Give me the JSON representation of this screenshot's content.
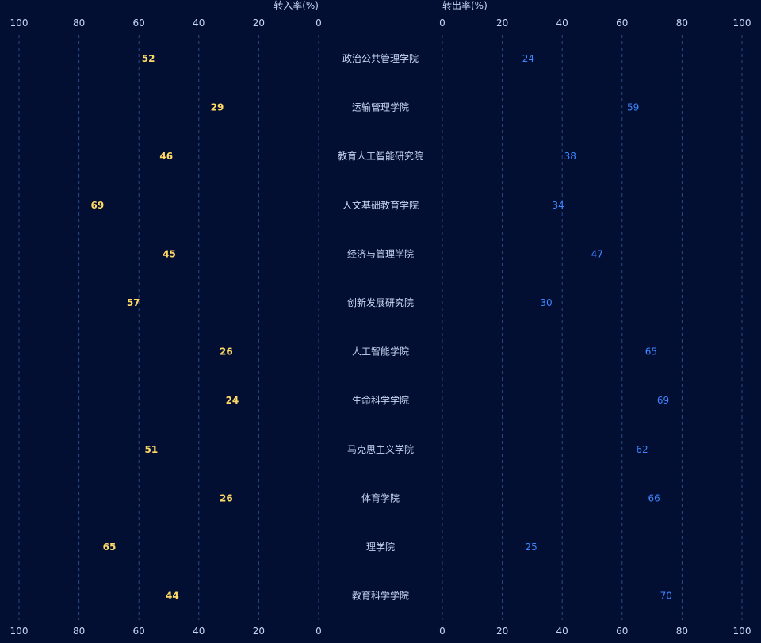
{
  "chart_data": {
    "type": "bar",
    "orientation": "horizontal-butterfly",
    "categories": [
      "政治公共管理学院",
      "运输管理学院",
      "教育人工智能研究院",
      "人文基础教育学院",
      "经济与管理学院",
      "创新发展研究院",
      "人工智能学院",
      "生命科学学院",
      "马克思主义学院",
      "体育学院",
      "理学院",
      "教育科学学院"
    ],
    "series": [
      {
        "name": "转入率(%)",
        "side": "left",
        "values": [
          52,
          29,
          46,
          69,
          45,
          57,
          26,
          24,
          51,
          26,
          65,
          44
        ]
      },
      {
        "name": "转出率(%)",
        "side": "right",
        "values": [
          24,
          59,
          38,
          34,
          47,
          30,
          65,
          69,
          62,
          66,
          25,
          70
        ]
      }
    ],
    "left_axis": {
      "label": "转入率(%)",
      "range": [
        0,
        100
      ],
      "ticks": [
        "100",
        "80",
        "60",
        "40",
        "20",
        "0"
      ],
      "reversed": true
    },
    "right_axis": {
      "label": "转出率(%)",
      "range": [
        0,
        100
      ],
      "ticks": [
        "0",
        "20",
        "40",
        "60",
        "80",
        "100"
      ]
    },
    "grid": true,
    "legend": "none"
  },
  "colors": {
    "background": "#020f33",
    "grid": "#2c4a86",
    "axis_text": "#c9d6f2",
    "category_text": "#c9d6f2",
    "left_bar_start": "#ffffff",
    "left_bar_end": "#ffd98a",
    "left_label": "#ffd966",
    "right_bar_start": "#2a5fb0",
    "right_bar_end": "#6fe3ff",
    "right_label": "#3e86ff"
  }
}
